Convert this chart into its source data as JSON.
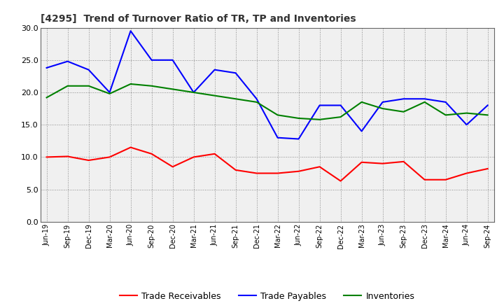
{
  "title": "[4295]  Trend of Turnover Ratio of TR, TP and Inventories",
  "x_labels": [
    "Jun-19",
    "Sep-19",
    "Dec-19",
    "Mar-20",
    "Jun-20",
    "Sep-20",
    "Dec-20",
    "Mar-21",
    "Jun-21",
    "Sep-21",
    "Dec-21",
    "Mar-22",
    "Jun-22",
    "Sep-22",
    "Dec-22",
    "Mar-23",
    "Jun-23",
    "Sep-23",
    "Dec-23",
    "Mar-24",
    "Jun-24",
    "Sep-24"
  ],
  "trade_receivables": [
    10.0,
    10.1,
    9.5,
    10.0,
    11.5,
    10.5,
    8.5,
    10.0,
    10.5,
    8.0,
    7.5,
    7.5,
    7.8,
    8.5,
    6.3,
    9.2,
    9.0,
    9.3,
    6.5,
    6.5,
    7.5,
    8.2
  ],
  "trade_payables": [
    23.8,
    24.8,
    23.5,
    20.0,
    29.5,
    25.0,
    25.0,
    20.0,
    23.5,
    23.0,
    19.0,
    13.0,
    12.8,
    18.0,
    18.0,
    14.0,
    18.5,
    19.0,
    19.0,
    18.5,
    15.0,
    18.0
  ],
  "inventories": [
    19.2,
    21.0,
    21.0,
    19.8,
    21.3,
    21.0,
    20.5,
    20.0,
    19.5,
    19.0,
    18.5,
    16.5,
    16.0,
    15.8,
    16.2,
    18.5,
    17.5,
    17.0,
    18.5,
    16.5,
    16.8,
    16.5
  ],
  "ylim": [
    0.0,
    30.0
  ],
  "yticks": [
    0.0,
    5.0,
    10.0,
    15.0,
    20.0,
    25.0,
    30.0
  ],
  "colors": {
    "trade_receivables": "#ff0000",
    "trade_payables": "#0000ff",
    "inventories": "#008000"
  },
  "legend_labels": [
    "Trade Receivables",
    "Trade Payables",
    "Inventories"
  ],
  "background_color": "#ffffff",
  "plot_bg_color": "#f0f0f0",
  "grid_color": "#888888"
}
